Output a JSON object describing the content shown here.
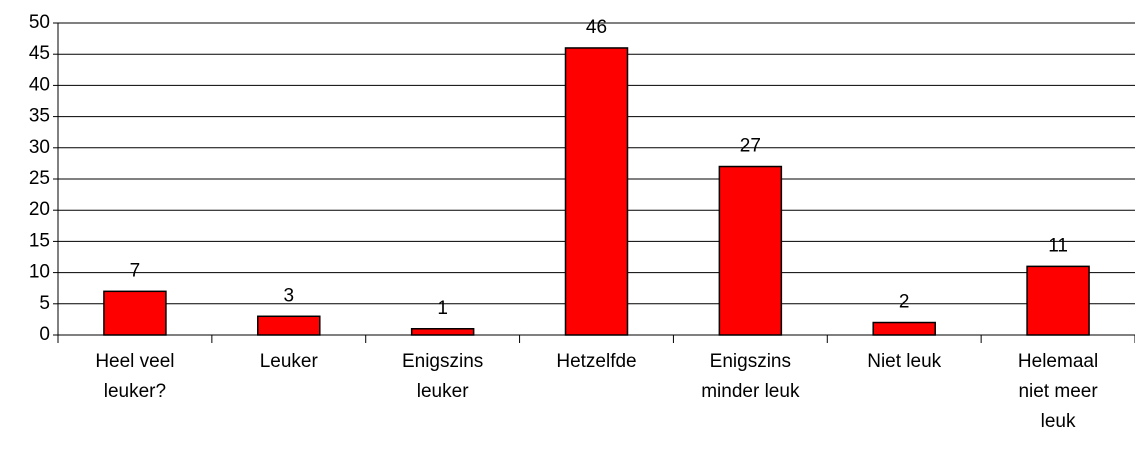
{
  "chart_data": {
    "type": "bar",
    "categories": [
      "Heel veel leuker?",
      "Leuker",
      "Enigszins leuker",
      "Hetzelfde",
      "Enigszins minder leuk",
      "Niet leuk",
      "Helemaal niet meer leuk"
    ],
    "values": [
      7,
      3,
      1,
      46,
      27,
      2,
      11
    ],
    "color": "#ff0000",
    "ylim": [
      0,
      50
    ],
    "yticks": [
      0,
      5,
      10,
      15,
      20,
      25,
      30,
      35,
      40,
      45,
      50
    ],
    "grid": true
  }
}
